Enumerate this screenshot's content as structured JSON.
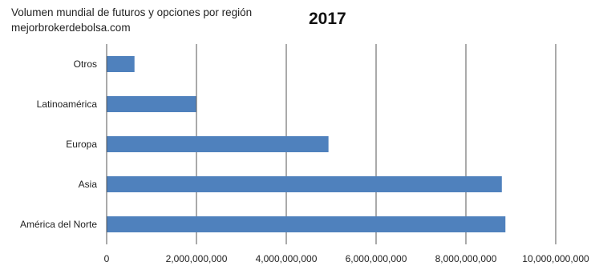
{
  "chart_data": {
    "type": "bar",
    "orientation": "horizontal",
    "title": "Volumen mundial de futuros y opciones por región",
    "subtitle": "mejorbrokerdebolsa.com",
    "year_label": "2017",
    "categories": [
      "América del Norte",
      "Asia",
      "Europa",
      "Latinoamérica",
      "Otros"
    ],
    "values": [
      8880000000,
      8800000000,
      4940000000,
      1990000000,
      620000000
    ],
    "xlim": [
      0,
      10000000000
    ],
    "xticks": [
      0,
      2000000000,
      4000000000,
      6000000000,
      8000000000,
      10000000000
    ],
    "xtick_labels": [
      "0",
      "2,000,000,000",
      "4,000,000,000",
      "6,000,000,000",
      "8,000,000,000",
      "10,000,000,000"
    ],
    "bar_color": "#4f81bd",
    "grid": true,
    "legend": "none"
  }
}
